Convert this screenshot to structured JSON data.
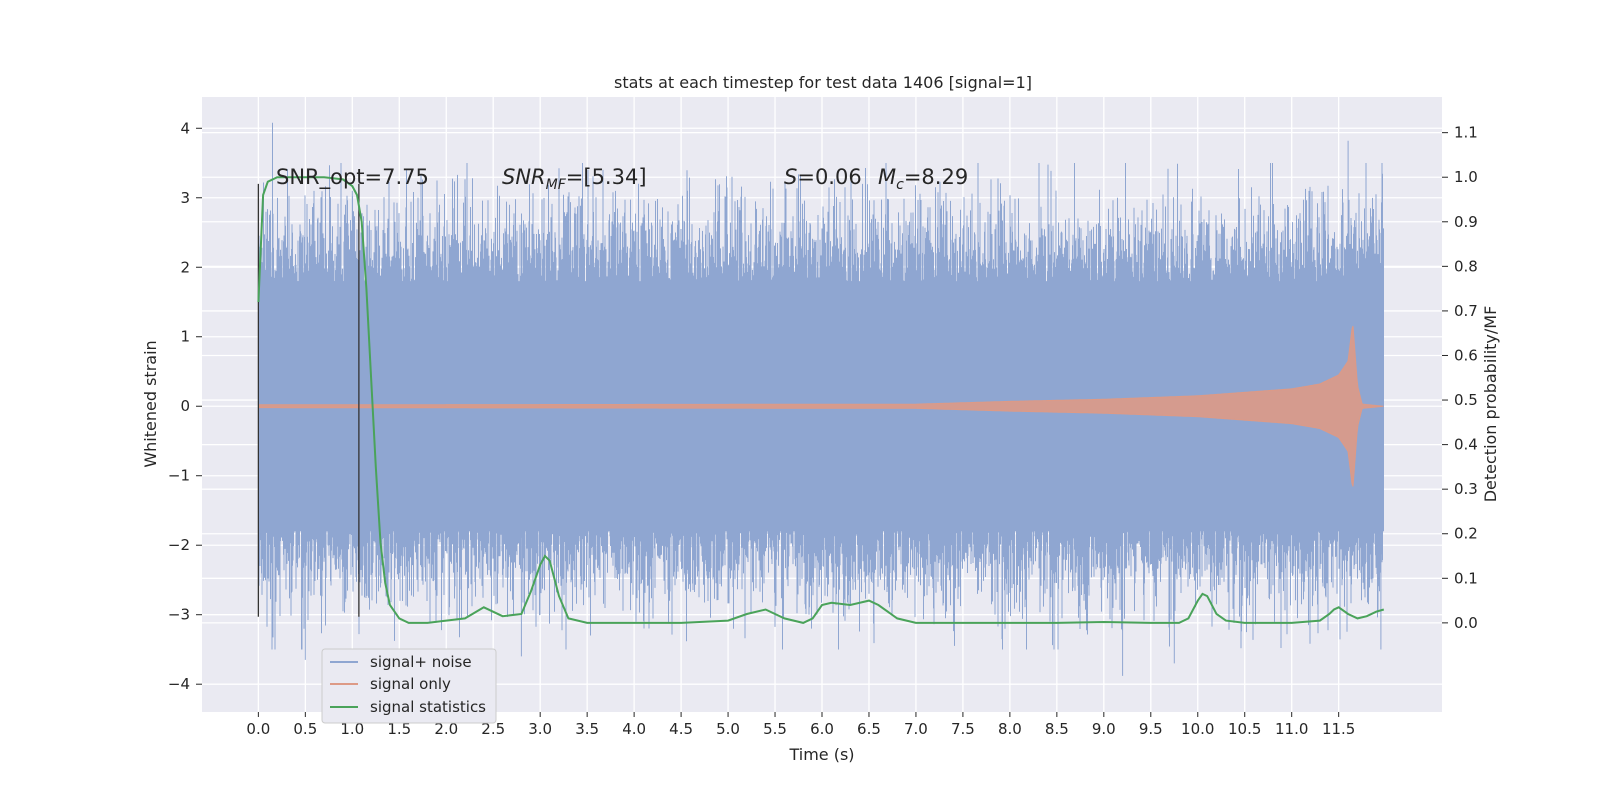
{
  "chart_data": {
    "type": "line",
    "title": "stats at each timestep for test data 1406 [signal=1]",
    "xlabel": "Time (s)",
    "ylabel": "Whitened strain",
    "ylabel_right": "Detection probability/MF",
    "xlim": [
      -0.6,
      12.6
    ],
    "ylim": [
      -4.4,
      4.45
    ],
    "ylim_right": [
      -0.2,
      1.18
    ],
    "x_ticks": [
      "0.0",
      "0.5",
      "1.0",
      "1.5",
      "2.0",
      "2.5",
      "3.0",
      "3.5",
      "4.0",
      "4.5",
      "5.0",
      "5.5",
      "6.0",
      "6.5",
      "7.0",
      "7.5",
      "8.0",
      "8.5",
      "9.0",
      "9.5",
      "10.0",
      "10.5",
      "11.0",
      "11.5"
    ],
    "y_ticks": [
      "−4",
      "−3",
      "−2",
      "−1",
      "0",
      "1",
      "2",
      "3",
      "4"
    ],
    "y_ticks_right": [
      "0.0",
      "0.1",
      "0.2",
      "0.3",
      "0.4",
      "0.5",
      "0.6",
      "0.7",
      "0.8",
      "0.9",
      "1.0",
      "1.1"
    ],
    "grid": true,
    "legend_position": "lower-left",
    "annotations": {
      "snr_opt": "SNR_opt=7.75",
      "snr_mf_main": "SNR",
      "snr_mf_sub": "MF",
      "snr_mf_value": "=[5.34]",
      "s_main": "S",
      "s_value": "=0.06",
      "mc_main": "M",
      "mc_sub": "c",
      "mc_value": "=8.29"
    },
    "vertical_lines": [
      0.0,
      1.07
    ],
    "series": [
      {
        "name": "signal+ noise",
        "color": "#8fa6d1",
        "x_range": [
          0.0,
          11.98
        ],
        "typical_band": [
          -1.8,
          1.8
        ],
        "extremes": [
          [
            0.15,
            4.08
          ],
          [
            0.5,
            -3.65
          ],
          [
            1.0,
            3.1
          ],
          [
            2.8,
            -3.6
          ],
          [
            3.45,
            3.5
          ],
          [
            9.2,
            -3.88
          ],
          [
            9.75,
            -3.7
          ],
          [
            11.6,
            3.82
          ],
          [
            11.95,
            -3.5
          ]
        ]
      },
      {
        "name": "signal only",
        "color": "#dd9a86",
        "x": [
          0.0,
          7.0,
          8.0,
          9.0,
          10.0,
          10.5,
          11.0,
          11.3,
          11.5,
          11.6,
          11.65,
          11.7,
          11.75,
          11.98
        ],
        "amplitude": [
          0.02,
          0.03,
          0.07,
          0.1,
          0.15,
          0.2,
          0.25,
          0.32,
          0.45,
          0.65,
          1.2,
          0.3,
          0.03,
          0.0
        ]
      },
      {
        "name": "signal statistics",
        "color": "#4aa35a",
        "x": [
          0.0,
          0.05,
          0.1,
          0.2,
          0.3,
          0.5,
          0.7,
          0.9,
          1.0,
          1.05,
          1.1,
          1.15,
          1.2,
          1.25,
          1.3,
          1.35,
          1.4,
          1.5,
          1.6,
          1.8,
          2.0,
          2.2,
          2.4,
          2.6,
          2.8,
          2.9,
          3.0,
          3.05,
          3.1,
          3.2,
          3.3,
          3.5,
          3.8,
          4.0,
          4.5,
          5.0,
          5.2,
          5.4,
          5.6,
          5.8,
          5.9,
          6.0,
          6.1,
          6.3,
          6.5,
          6.6,
          6.8,
          7.0,
          7.5,
          8.0,
          8.5,
          9.0,
          9.5,
          9.8,
          9.9,
          10.0,
          10.05,
          10.1,
          10.2,
          10.3,
          10.5,
          11.0,
          11.3,
          11.4,
          11.45,
          11.5,
          11.6,
          11.7,
          11.8,
          11.9,
          11.98
        ],
        "y": [
          0.72,
          0.96,
          0.99,
          1.0,
          1.0,
          1.0,
          1.0,
          0.995,
          0.98,
          0.96,
          0.9,
          0.75,
          0.55,
          0.35,
          0.18,
          0.09,
          0.04,
          0.01,
          0.0,
          0.0,
          0.005,
          0.01,
          0.035,
          0.015,
          0.02,
          0.07,
          0.13,
          0.15,
          0.14,
          0.06,
          0.01,
          0.0,
          0.0,
          0.0,
          0.0,
          0.005,
          0.02,
          0.03,
          0.01,
          0.0,
          0.01,
          0.04,
          0.045,
          0.04,
          0.05,
          0.04,
          0.01,
          0.0,
          0.0,
          0.0,
          0.0,
          0.002,
          0.0,
          0.0,
          0.01,
          0.05,
          0.065,
          0.06,
          0.02,
          0.005,
          0.0,
          0.0,
          0.005,
          0.02,
          0.03,
          0.035,
          0.02,
          0.01,
          0.015,
          0.025,
          0.03
        ]
      }
    ]
  }
}
